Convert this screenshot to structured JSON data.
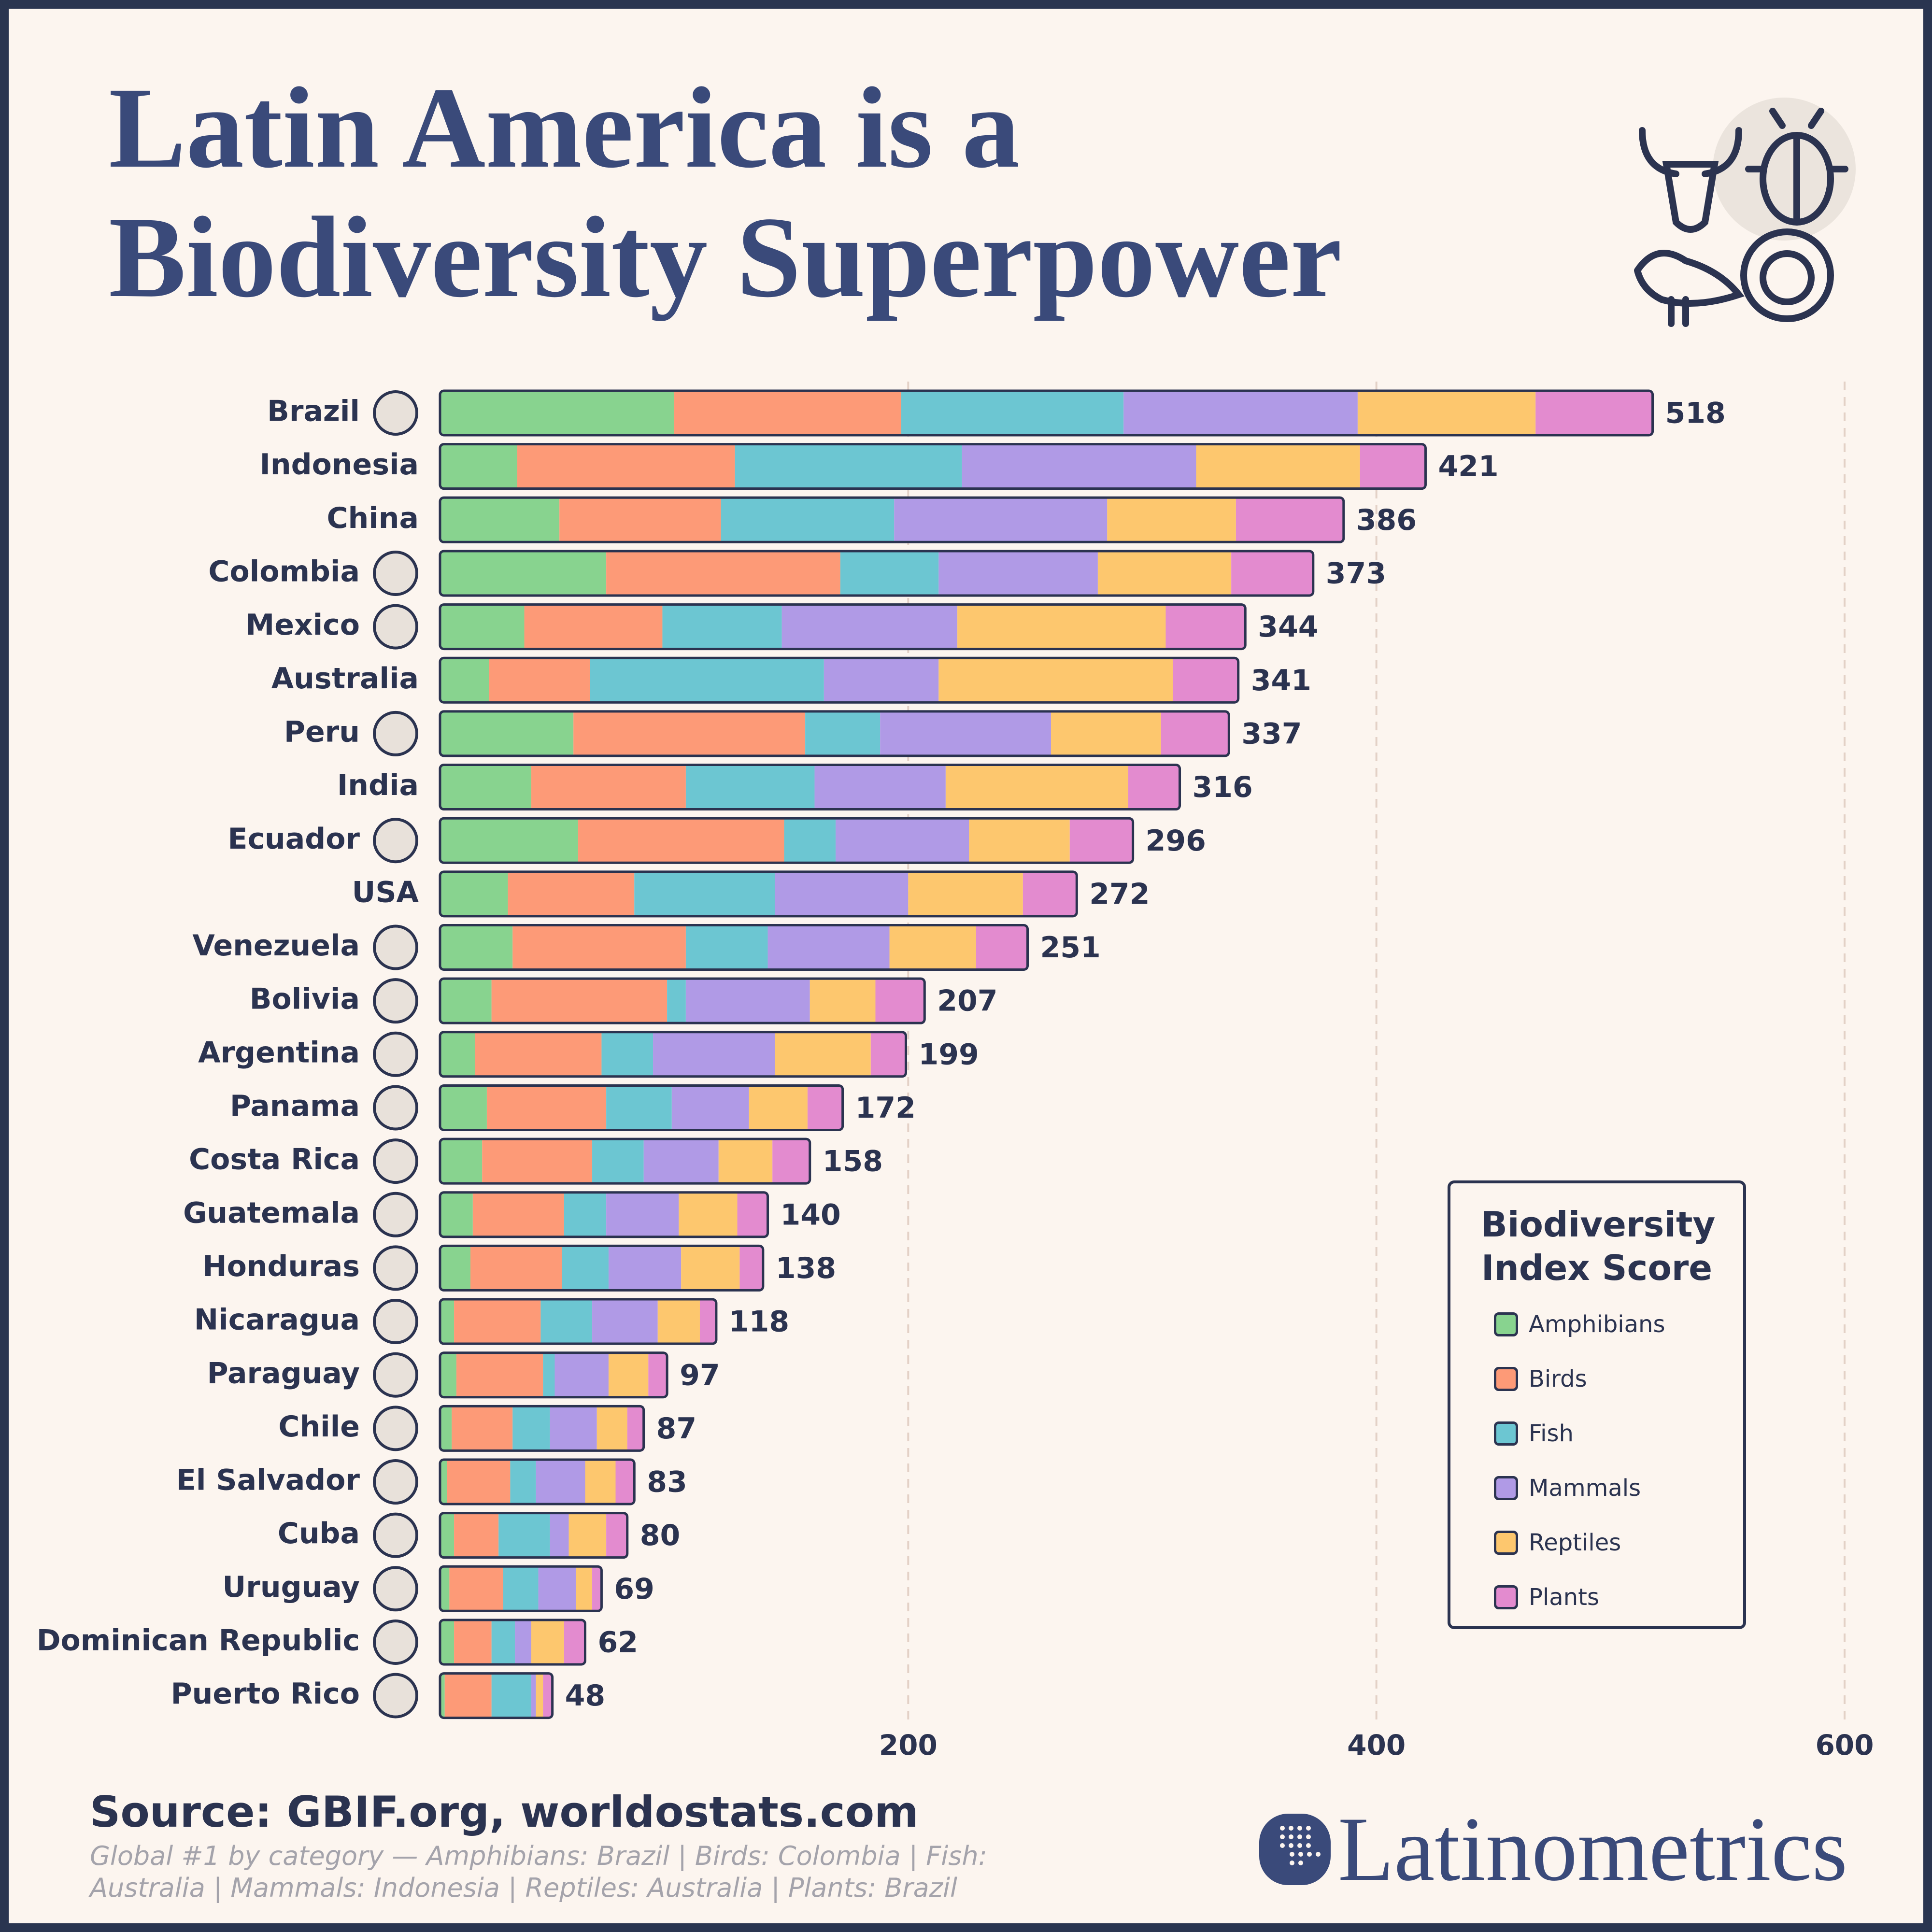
{
  "chart_data": {
    "type": "stacked-bar",
    "orientation": "horizontal",
    "title": "Latin America is a Biodiversity Superpower",
    "source": "Source: GBIF.org, worldostats.com",
    "note": "Global #1 by category — Amphibians: Brazil | Birds: Colombia | Fish: Australia | Mammals: Indonesia | Reptiles: Australia | Plants: Brazil",
    "brand": "Latinometrics",
    "legend_title": "Biodiversity Index Score",
    "legend_position": "lower-right",
    "grid": true,
    "xlim": [
      0,
      600
    ],
    "xticks": [
      200,
      400,
      600
    ],
    "categories": [
      "Brazil",
      "Indonesia",
      "China",
      "Colombia",
      "Mexico",
      "Australia",
      "Peru",
      "India",
      "Ecuador",
      "USA",
      "Venezuela",
      "Bolivia",
      "Argentina",
      "Panama",
      "Costa Rica",
      "Guatemala",
      "Honduras",
      "Nicaragua",
      "Paraguay",
      "Chile",
      "El Salvador",
      "Cuba",
      "Uruguay",
      "Dominican Republic",
      "Puerto Rico"
    ],
    "totals": [
      518,
      421,
      386,
      373,
      344,
      341,
      337,
      316,
      296,
      272,
      251,
      207,
      199,
      172,
      158,
      140,
      138,
      118,
      97,
      87,
      83,
      80,
      69,
      62,
      48
    ],
    "series": [
      {
        "name": "Amphibians",
        "color": "#88d38f",
        "values": [
          100,
          33,
          51,
          71,
          36,
          21,
          57,
          39,
          59,
          29,
          31,
          22,
          15,
          20,
          18,
          14,
          13,
          6,
          7,
          5,
          3,
          6,
          4,
          6,
          2
        ]
      },
      {
        "name": "Birds",
        "color": "#fd9a77",
        "values": [
          97,
          93,
          69,
          100,
          59,
          43,
          99,
          66,
          88,
          54,
          74,
          75,
          54,
          51,
          47,
          39,
          39,
          37,
          37,
          26,
          27,
          19,
          23,
          16,
          20
        ]
      },
      {
        "name": "Fish",
        "color": "#6cc6d2",
        "values": [
          95,
          97,
          74,
          42,
          51,
          100,
          32,
          55,
          22,
          60,
          35,
          8,
          22,
          28,
          22,
          18,
          20,
          22,
          5,
          16,
          11,
          22,
          15,
          10,
          17
        ]
      },
      {
        "name": "Mammals",
        "color": "#b09ae6",
        "values": [
          100,
          100,
          91,
          68,
          75,
          49,
          73,
          56,
          57,
          57,
          52,
          53,
          52,
          33,
          32,
          31,
          31,
          28,
          23,
          20,
          21,
          8,
          16,
          7,
          2
        ]
      },
      {
        "name": "Reptiles",
        "color": "#fdc76e",
        "values": [
          76,
          70,
          55,
          57,
          89,
          100,
          47,
          78,
          43,
          49,
          37,
          28,
          41,
          25,
          23,
          25,
          25,
          18,
          17,
          13,
          13,
          16,
          7,
          14,
          3
        ]
      },
      {
        "name": "Plants",
        "color": "#e38bcf",
        "values": [
          50,
          28,
          46,
          35,
          34,
          28,
          29,
          22,
          27,
          23,
          22,
          21,
          15,
          15,
          16,
          13,
          10,
          7,
          8,
          7,
          8,
          9,
          4,
          9,
          4
        ]
      }
    ]
  }
}
